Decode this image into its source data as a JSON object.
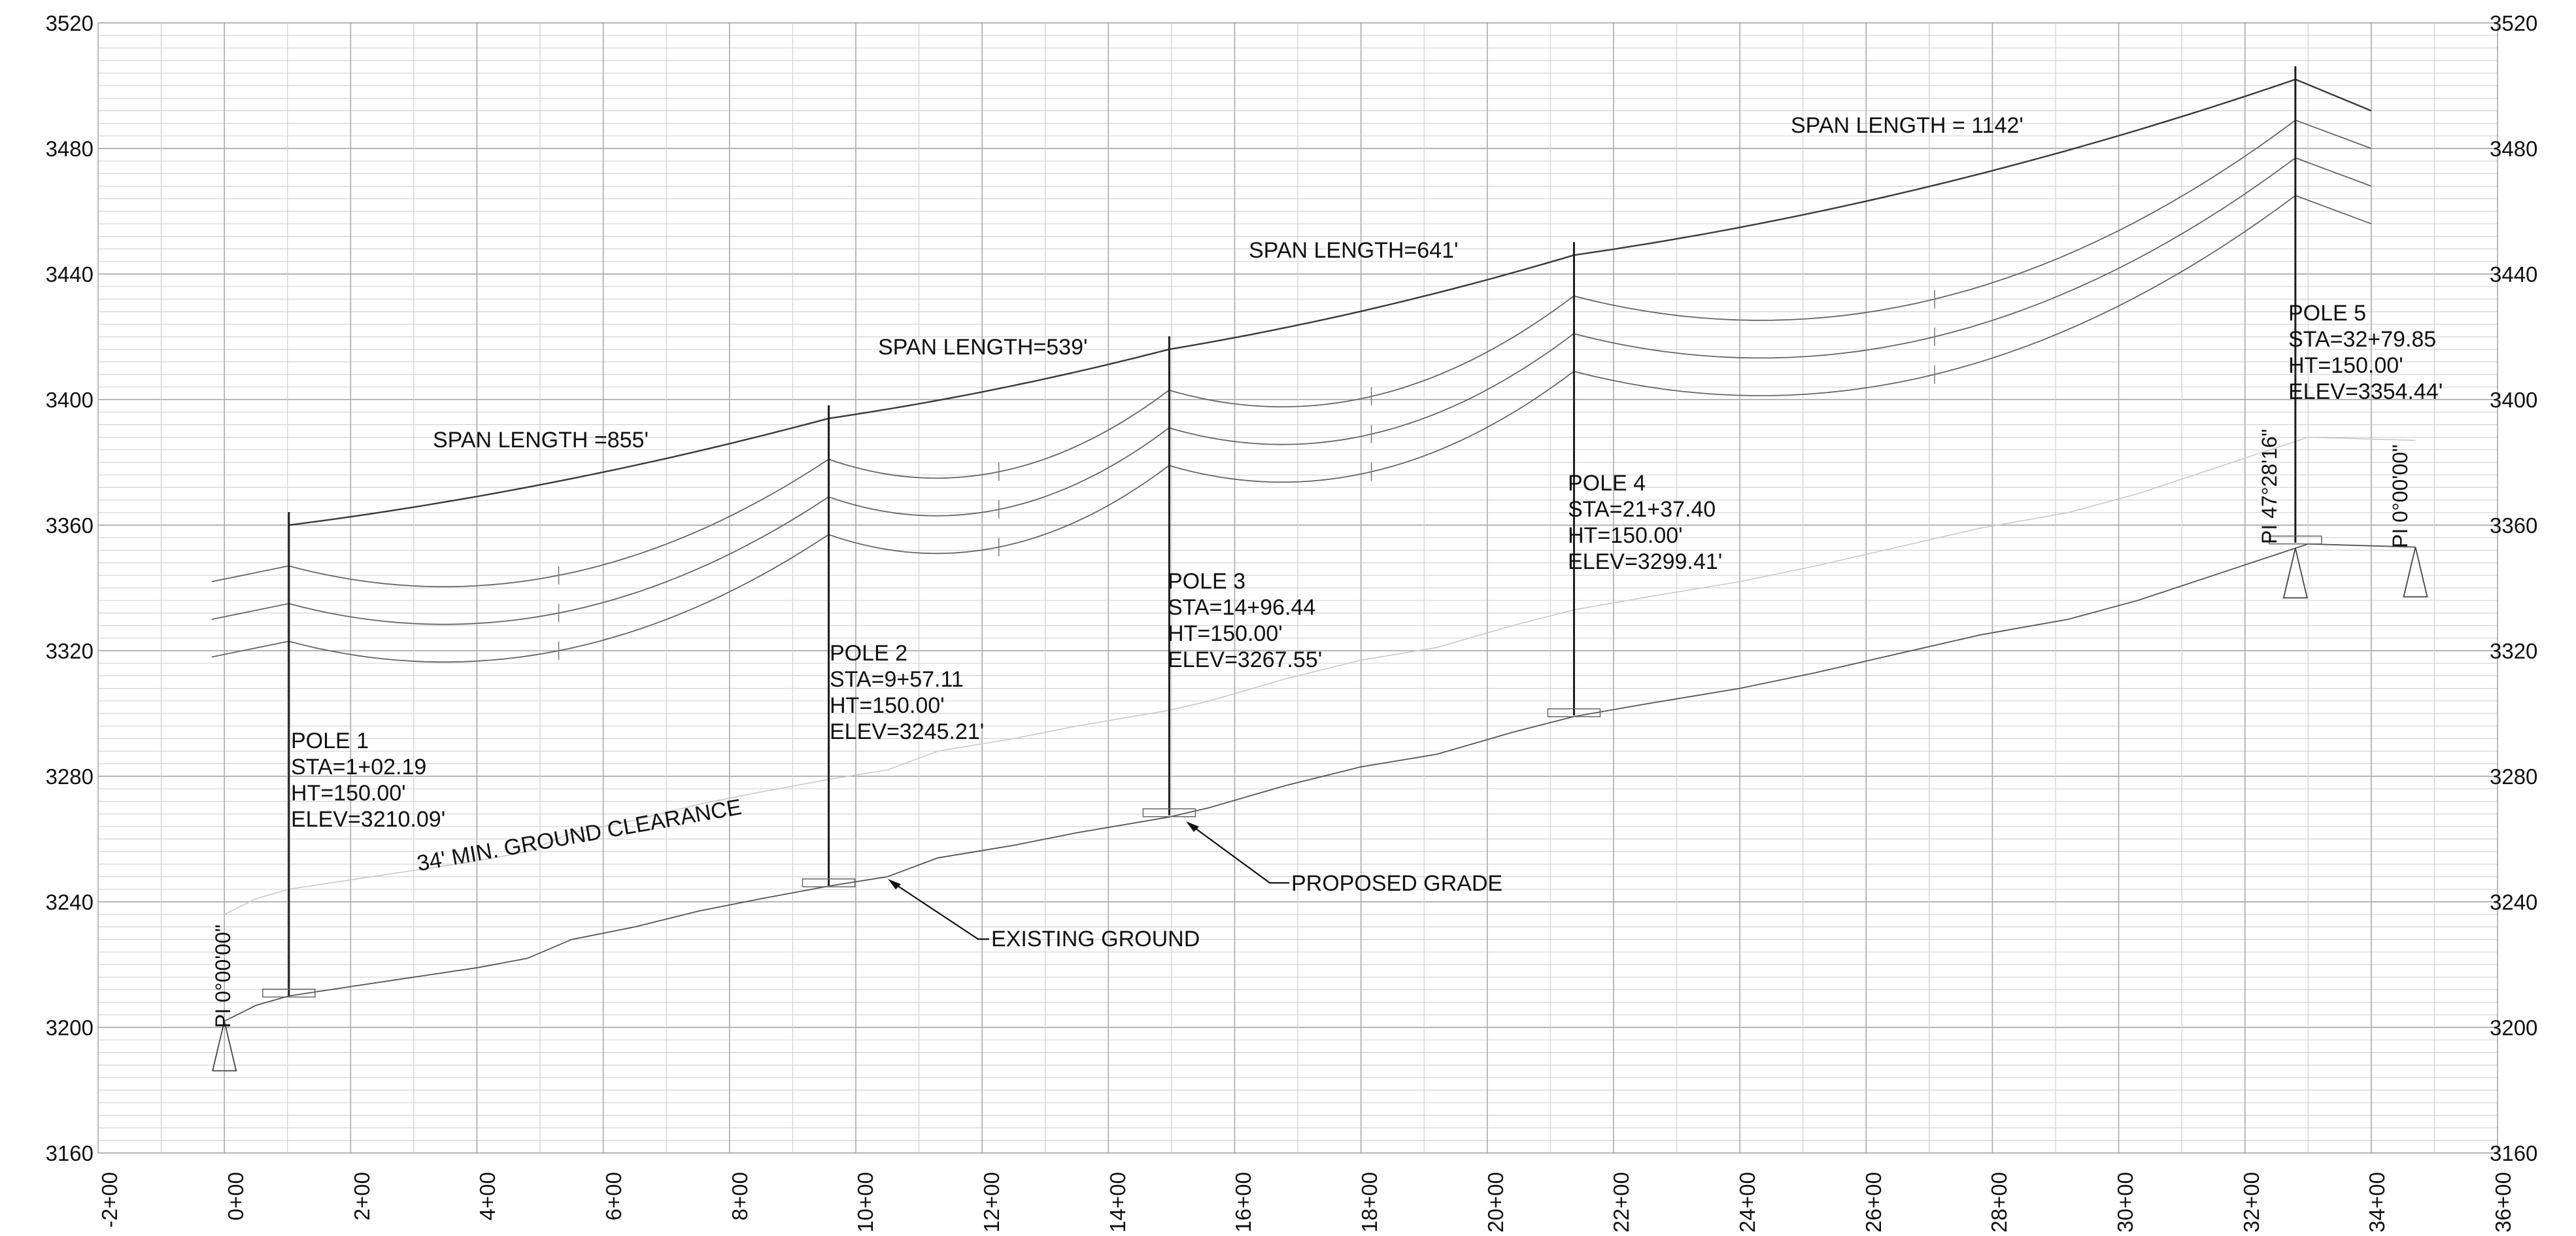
{
  "axes": {
    "elevation_labels": [
      "3520",
      "3480",
      "3440",
      "3400",
      "3360",
      "3320",
      "3280",
      "3240",
      "3200",
      "3160"
    ],
    "elevation_values": [
      3520,
      3480,
      3440,
      3400,
      3360,
      3320,
      3280,
      3240,
      3200,
      3160
    ],
    "elevation_range": [
      3160,
      3520
    ],
    "station_labels": [
      "-2+00",
      "0+00",
      "2+00",
      "4+00",
      "6+00",
      "8+00",
      "10+00",
      "12+00",
      "14+00",
      "16+00",
      "18+00",
      "20+00",
      "22+00",
      "24+00",
      "26+00",
      "28+00",
      "30+00",
      "32+00",
      "34+00",
      "36+00"
    ],
    "station_values": [
      -200,
      0,
      200,
      400,
      600,
      800,
      1000,
      1200,
      1400,
      1600,
      1800,
      2000,
      2200,
      2400,
      2600,
      2800,
      3000,
      3200,
      3400,
      3600
    ],
    "station_range": [
      -200,
      3600
    ],
    "grid": true
  },
  "poles": [
    {
      "label": "POLE 1",
      "sta": "STA=1+02.19",
      "ht": "HT=150.00'",
      "elev": "ELEV=3210.09'",
      "station": 102.19,
      "base": 3210.09
    },
    {
      "label": "POLE 2",
      "sta": "STA=9+57.11",
      "ht": "HT=150.00'",
      "elev": "ELEV=3245.21'",
      "station": 957.11,
      "base": 3245.21
    },
    {
      "label": "POLE 3",
      "sta": "STA=14+96.44",
      "ht": "HT=150.00'",
      "elev": "ELEV=3267.55'",
      "station": 1496.44,
      "base": 3267.55
    },
    {
      "label": "POLE 4",
      "sta": "STA=21+37.40",
      "ht": "HT=150.00'",
      "elev": "ELEV=3299.41'",
      "station": 2137.4,
      "base": 3299.41
    },
    {
      "label": "POLE 5",
      "sta": "STA=32+79.85",
      "ht": "HT=150.00'",
      "elev": "ELEV=3354.44'",
      "station": 3279.85,
      "base": 3354.44
    }
  ],
  "spans": [
    {
      "label": "SPAN LENGTH =855'"
    },
    {
      "label": "SPAN LENGTH=539'"
    },
    {
      "label": "SPAN LENGTH=641'"
    },
    {
      "label": "SPAN LENGTH = 1142'"
    }
  ],
  "annotations": {
    "clearance": "34' MIN. GROUND CLEARANCE",
    "proposed_grade": "PROPOSED GRADE",
    "existing_ground": "EXISTING GROUND"
  },
  "pi_markers": [
    {
      "label": "PI 0°00'00\"",
      "station": 0
    },
    {
      "label": "PI 47°28'16\"",
      "station": 3279.85
    },
    {
      "label": "PI 0°00'00\"",
      "station": 3470
    }
  ],
  "ground_profile": [
    [
      0,
      3202
    ],
    [
      50,
      3207
    ],
    [
      102,
      3210
    ],
    [
      200,
      3213
    ],
    [
      300,
      3216
    ],
    [
      400,
      3219
    ],
    [
      480,
      3222
    ],
    [
      550,
      3228
    ],
    [
      650,
      3232
    ],
    [
      750,
      3237
    ],
    [
      850,
      3241
    ],
    [
      957,
      3245
    ],
    [
      1050,
      3248
    ],
    [
      1130,
      3254
    ],
    [
      1250,
      3258
    ],
    [
      1350,
      3262
    ],
    [
      1496,
      3267
    ],
    [
      1560,
      3270
    ],
    [
      1680,
      3277
    ],
    [
      1800,
      3283
    ],
    [
      1920,
      3287
    ],
    [
      2040,
      3294
    ],
    [
      2137,
      3299
    ],
    [
      2250,
      3303
    ],
    [
      2400,
      3308
    ],
    [
      2520,
      3313
    ],
    [
      2650,
      3319
    ],
    [
      2780,
      3325
    ],
    [
      2920,
      3330
    ],
    [
      3030,
      3336
    ],
    [
      3150,
      3344
    ],
    [
      3240,
      3350
    ],
    [
      3300,
      3354
    ],
    [
      3470,
      3353
    ]
  ],
  "conductors": {
    "top_attachments": [
      [
        102,
        3360
      ],
      [
        957,
        3394
      ],
      [
        1496,
        3416
      ],
      [
        2137,
        3446
      ],
      [
        3280,
        3502
      ]
    ],
    "arm_offsets": [
      -13,
      -25,
      -37
    ],
    "left_stubs": [
      3342,
      3330,
      3318
    ],
    "right_stubs": [
      3492,
      3480,
      3468,
      3456
    ],
    "left_start_station": -20,
    "right_end_station": 3400,
    "sag": [
      10,
      5,
      7,
      19
    ]
  }
}
